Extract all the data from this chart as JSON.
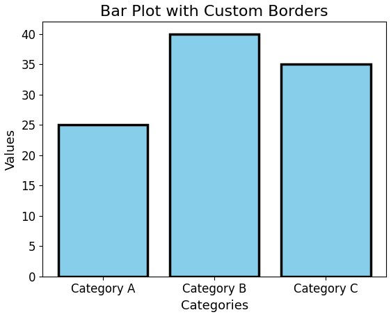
{
  "categories": [
    "Category A",
    "Category B",
    "Category C"
  ],
  "values": [
    25,
    40,
    35
  ],
  "bar_color": "#87CEEB",
  "bar_edgecolor": "#000000",
  "bar_linewidth": 2.5,
  "title": "Bar Plot with Custom Borders",
  "xlabel": "Categories",
  "ylabel": "Values",
  "ylim": [
    0,
    42
  ],
  "title_fontsize": 16,
  "label_fontsize": 13,
  "tick_fontsize": 12,
  "background_color": "#ffffff",
  "fig_width": 5.62,
  "fig_height": 4.55,
  "dpi": 100
}
